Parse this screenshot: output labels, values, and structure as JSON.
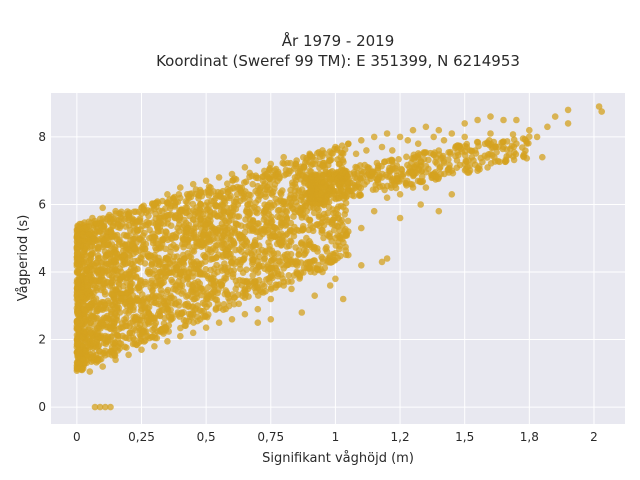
{
  "chart_data": {
    "type": "scatter",
    "title": "År 1979 - 2019",
    "subtitle": "Koordinat (Sweref 99 TM): E 351399, N 6214953",
    "xlabel": "Signifikant våghöjd (m)",
    "ylabel": "Vågperiod (s)",
    "xlim": [
      -0.1,
      2.12
    ],
    "ylim": [
      -0.5,
      9.3
    ],
    "x_ticks": [
      {
        "value": 0,
        "label": "0"
      },
      {
        "value": 0.25,
        "label": "0,25"
      },
      {
        "value": 0.5,
        "label": "0,5"
      },
      {
        "value": 0.75,
        "label": "0,75"
      },
      {
        "value": 1,
        "label": "1"
      },
      {
        "value": 1.25,
        "label": "1,2"
      },
      {
        "value": 1.5,
        "label": "1,5"
      },
      {
        "value": 1.75,
        "label": "1,8"
      },
      {
        "value": 2,
        "label": "2"
      }
    ],
    "y_ticks": [
      {
        "value": 0,
        "label": "0"
      },
      {
        "value": 2,
        "label": "2"
      },
      {
        "value": 4,
        "label": "4"
      },
      {
        "value": 6,
        "label": "6"
      },
      {
        "value": 8,
        "label": "8"
      }
    ],
    "grid": true,
    "legend": "none",
    "colors": {
      "marker": "#D4A21F",
      "plot_bg": "#E8E8F0",
      "grid": "#ffffff"
    },
    "series": [
      {
        "points": [
          [
            0.01,
            1.6
          ],
          [
            0.02,
            1.1
          ],
          [
            0.02,
            3.8
          ],
          [
            0.03,
            5.3
          ],
          [
            0.04,
            4.7
          ],
          [
            0.05,
            3.0
          ],
          [
            0.06,
            5.6
          ],
          [
            0.07,
            0.0
          ],
          [
            0.09,
            0.0
          ],
          [
            0.11,
            0.0
          ],
          [
            0.13,
            0.0
          ],
          [
            0.05,
            1.05
          ],
          [
            0.1,
            1.2
          ],
          [
            0.1,
            5.9
          ],
          [
            0.15,
            1.4
          ],
          [
            0.15,
            5.8
          ],
          [
            0.2,
            1.55
          ],
          [
            0.2,
            5.7
          ],
          [
            0.25,
            1.7
          ],
          [
            0.25,
            5.9
          ],
          [
            0.3,
            1.8
          ],
          [
            0.3,
            6.0
          ],
          [
            0.35,
            1.95
          ],
          [
            0.35,
            6.3
          ],
          [
            0.4,
            2.1
          ],
          [
            0.4,
            6.5
          ],
          [
            0.45,
            2.2
          ],
          [
            0.45,
            6.6
          ],
          [
            0.5,
            2.35
          ],
          [
            0.5,
            6.7
          ],
          [
            0.55,
            2.5
          ],
          [
            0.55,
            6.8
          ],
          [
            0.6,
            2.6
          ],
          [
            0.6,
            6.9
          ],
          [
            0.65,
            2.75
          ],
          [
            0.65,
            7.1
          ],
          [
            0.7,
            2.9
          ],
          [
            0.7,
            7.3
          ],
          [
            0.75,
            3.2
          ],
          [
            0.75,
            7.2
          ],
          [
            0.8,
            3.7
          ],
          [
            0.8,
            7.4
          ],
          [
            0.85,
            4.0
          ],
          [
            0.85,
            7.3
          ],
          [
            0.9,
            4.3
          ],
          [
            0.9,
            7.5
          ],
          [
            0.95,
            4.4
          ],
          [
            0.95,
            7.6
          ],
          [
            1.0,
            5.0
          ],
          [
            1.0,
            7.7
          ],
          [
            1.05,
            5.2
          ],
          [
            1.05,
            7.8
          ],
          [
            1.1,
            5.3
          ],
          [
            1.1,
            7.9
          ],
          [
            1.15,
            5.8
          ],
          [
            1.15,
            8.0
          ],
          [
            1.2,
            6.2
          ],
          [
            1.2,
            8.1
          ],
          [
            1.25,
            6.3
          ],
          [
            1.25,
            8.0
          ],
          [
            1.3,
            6.5
          ],
          [
            1.3,
            8.2
          ],
          [
            1.35,
            6.5
          ],
          [
            1.35,
            8.3
          ],
          [
            1.4,
            6.8
          ],
          [
            1.4,
            8.2
          ],
          [
            1.45,
            7.0
          ],
          [
            1.45,
            8.1
          ],
          [
            1.5,
            7.2
          ],
          [
            1.5,
            8.4
          ],
          [
            1.55,
            7.0
          ],
          [
            1.55,
            8.5
          ],
          [
            1.6,
            7.5
          ],
          [
            1.6,
            8.6
          ],
          [
            1.65,
            7.7
          ],
          [
            1.65,
            8.5
          ],
          [
            1.7,
            7.8
          ],
          [
            1.75,
            8.2
          ],
          [
            1.8,
            7.4
          ],
          [
            1.82,
            8.3
          ],
          [
            1.85,
            8.6
          ],
          [
            1.9,
            8.8
          ],
          [
            1.9,
            8.4
          ],
          [
            2.02,
            8.9
          ],
          [
            2.03,
            8.75
          ],
          [
            1.78,
            8.0
          ],
          [
            1.7,
            8.5
          ],
          [
            1.6,
            8.1
          ],
          [
            1.5,
            8.0
          ],
          [
            1.45,
            6.3
          ],
          [
            1.4,
            5.8
          ],
          [
            1.33,
            6.0
          ],
          [
            1.25,
            5.6
          ],
          [
            1.2,
            4.4
          ],
          [
            1.18,
            4.3
          ],
          [
            1.1,
            4.2
          ],
          [
            1.05,
            4.5
          ],
          [
            1.0,
            3.8
          ],
          [
            0.95,
            4.0
          ],
          [
            0.9,
            4.1
          ],
          [
            0.83,
            3.5
          ],
          [
            0.8,
            3.6
          ],
          [
            0.75,
            2.6
          ],
          [
            0.7,
            2.5
          ],
          [
            0.65,
            4.5
          ],
          [
            0.6,
            4.8
          ],
          [
            0.55,
            5.3
          ],
          [
            0.5,
            3.2
          ],
          [
            0.45,
            3.5
          ],
          [
            0.4,
            4.0
          ],
          [
            0.35,
            3.0
          ],
          [
            0.3,
            2.6
          ],
          [
            0.25,
            3.6
          ],
          [
            0.2,
            2.8
          ],
          [
            0.15,
            3.2
          ],
          [
            0.1,
            2.4
          ],
          [
            0.08,
            2.0
          ],
          [
            0.12,
            4.8
          ],
          [
            0.18,
            4.5
          ],
          [
            0.22,
            5.2
          ],
          [
            0.28,
            5.0
          ],
          [
            0.32,
            5.5
          ],
          [
            0.38,
            5.6
          ],
          [
            0.42,
            5.9
          ],
          [
            0.48,
            6.0
          ],
          [
            0.52,
            6.1
          ],
          [
            0.58,
            6.2
          ],
          [
            0.62,
            6.3
          ],
          [
            0.68,
            6.6
          ],
          [
            0.72,
            6.7
          ],
          [
            0.78,
            6.9
          ],
          [
            0.82,
            7.0
          ],
          [
            0.88,
            7.1
          ],
          [
            0.92,
            7.2
          ],
          [
            0.98,
            7.3
          ],
          [
            1.02,
            7.4
          ],
          [
            1.08,
            7.5
          ],
          [
            1.12,
            7.6
          ],
          [
            1.18,
            7.7
          ],
          [
            1.22,
            7.6
          ],
          [
            1.28,
            7.9
          ],
          [
            1.32,
            7.8
          ],
          [
            1.38,
            8.0
          ],
          [
            1.42,
            7.9
          ],
          [
            1.48,
            7.7
          ],
          [
            1.52,
            7.6
          ],
          [
            0.87,
            2.8
          ],
          [
            0.98,
            3.6
          ],
          [
            1.03,
            3.2
          ],
          [
            0.92,
            3.3
          ],
          [
            0.68,
            3.9
          ],
          [
            0.58,
            3.4
          ],
          [
            0.47,
            4.1
          ],
          [
            0.37,
            3.7
          ]
        ]
      }
    ]
  }
}
